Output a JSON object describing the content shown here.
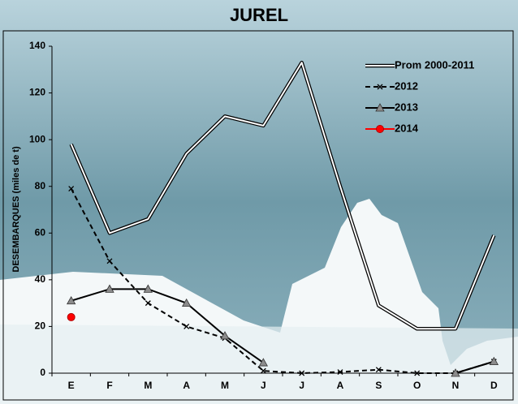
{
  "chart_data": {
    "type": "line",
    "title": "JUREL",
    "y_label": "DESEMBARQUES    (miles de t)",
    "categories": [
      "E",
      "F",
      "M",
      "A",
      "M",
      "J",
      "J",
      "A",
      "S",
      "O",
      "N",
      "D"
    ],
    "series": [
      {
        "name": "Prom 2000-2011",
        "color": "#ffffff",
        "marker": "none",
        "values": [
          98,
          60,
          66,
          94,
          110,
          106,
          133,
          80,
          29,
          19,
          19,
          59
        ]
      },
      {
        "name": "2012",
        "color": "#000000",
        "marker": "x",
        "dash": true,
        "values": [
          79,
          48,
          30,
          20,
          15,
          1,
          0,
          0.5,
          1.5,
          0,
          0,
          5
        ]
      },
      {
        "name": "2013",
        "color": "#000000",
        "marker": "triangle",
        "values": [
          31,
          36,
          36,
          30,
          16,
          4.5,
          null,
          null,
          null,
          null,
          0,
          5
        ]
      },
      {
        "name": "2014",
        "color": "#ff0000",
        "marker": "circle",
        "values": [
          24,
          null,
          null,
          null,
          null,
          null,
          null,
          null,
          null,
          null,
          null,
          null
        ]
      }
    ],
    "ylim": [
      0,
      140
    ],
    "yticks": [
      0,
      20,
      40,
      60,
      80,
      100,
      120,
      140
    ],
    "legend": "upper right"
  }
}
